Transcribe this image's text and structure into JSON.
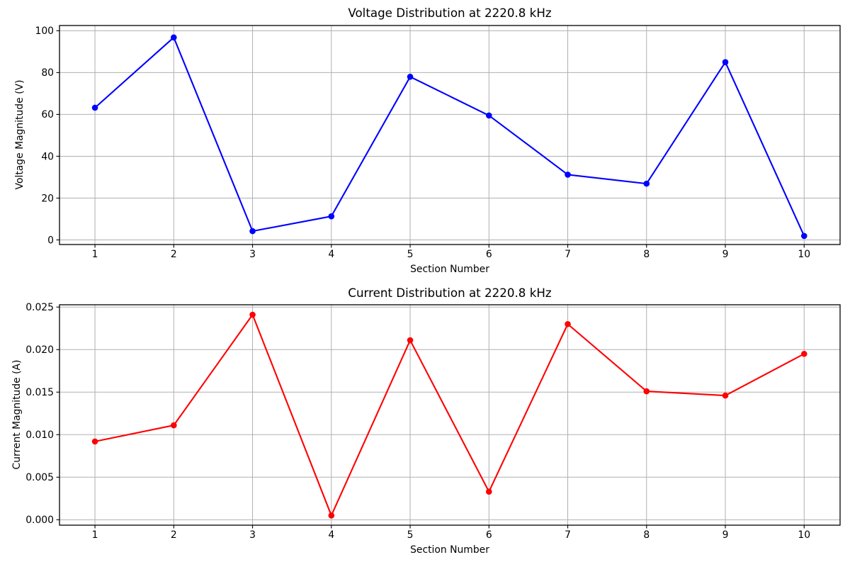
{
  "figure": {
    "background": "#ffffff",
    "spine_color": "#000000",
    "text_color": "#000000",
    "grid_color": "#b0b0b0"
  },
  "chart_data": [
    {
      "type": "line",
      "title": "Voltage Distribution at 2220.8 kHz",
      "xlabel": "Section Number",
      "ylabel": "Voltage Magnitude (V)",
      "x": [
        1,
        2,
        3,
        4,
        5,
        6,
        7,
        8,
        9,
        10
      ],
      "values": [
        63.2,
        96.8,
        4.2,
        11.3,
        78.0,
        59.5,
        31.2,
        26.9,
        85.0,
        1.9
      ],
      "line_color": "#0000ff",
      "marker": "circle",
      "grid": true,
      "legend": null,
      "xlim": [
        0.55,
        10.456
      ],
      "ylim": [
        -2.2,
        102.5
      ],
      "xticks": [
        1,
        2,
        3,
        4,
        5,
        6,
        7,
        8,
        9,
        10
      ],
      "xtick_labels": [
        "1",
        "2",
        "3",
        "4",
        "5",
        "6",
        "7",
        "8",
        "9",
        "10"
      ],
      "yticks": [
        0,
        20,
        40,
        60,
        80,
        100
      ],
      "ytick_labels": [
        "0",
        "20",
        "40",
        "60",
        "80",
        "100"
      ]
    },
    {
      "type": "line",
      "title": "Current Distribution at 2220.8 kHz",
      "xlabel": "Section Number",
      "ylabel": "Current Magnitude (A)",
      "x": [
        1,
        2,
        3,
        4,
        5,
        6,
        7,
        8,
        9,
        10
      ],
      "values": [
        0.0092,
        0.0111,
        0.0241,
        0.0005,
        0.0211,
        0.0033,
        0.023,
        0.0151,
        0.0146,
        0.0195
      ],
      "line_color": "#ff0000",
      "marker": "circle",
      "grid": true,
      "legend": null,
      "xlim": [
        0.55,
        10.456
      ],
      "ylim": [
        -0.00064,
        0.02527
      ],
      "xticks": [
        1,
        2,
        3,
        4,
        5,
        6,
        7,
        8,
        9,
        10
      ],
      "xtick_labels": [
        "1",
        "2",
        "3",
        "4",
        "5",
        "6",
        "7",
        "8",
        "9",
        "10"
      ],
      "yticks": [
        0.0,
        0.005,
        0.01,
        0.015,
        0.02,
        0.025
      ],
      "ytick_labels": [
        "0.000",
        "0.005",
        "0.010",
        "0.015",
        "0.020",
        "0.025"
      ]
    }
  ]
}
